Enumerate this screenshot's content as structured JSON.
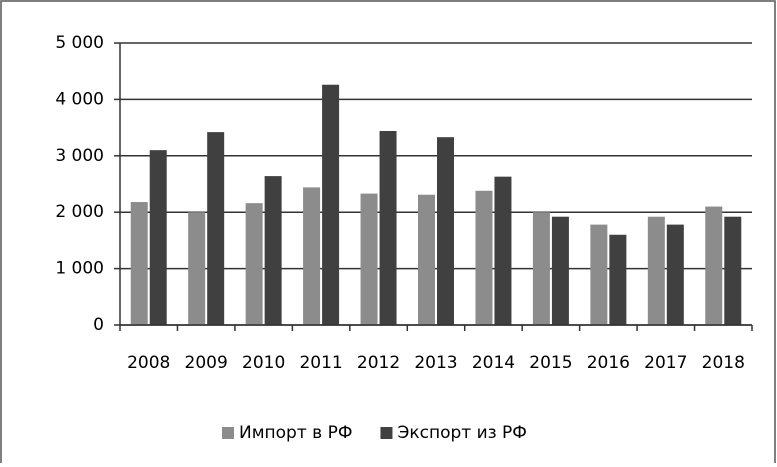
{
  "chart_data": {
    "type": "bar",
    "categories": [
      "2008",
      "2009",
      "2010",
      "2011",
      "2012",
      "2013",
      "2014",
      "2015",
      "2016",
      "2017",
      "2018"
    ],
    "series": [
      {
        "name": "Импорт в РФ",
        "color": "#8c8c8c",
        "values": [
          2180,
          2000,
          2160,
          2440,
          2330,
          2310,
          2380,
          2000,
          1780,
          1920,
          2100
        ]
      },
      {
        "name": "Экспорт из РФ",
        "color": "#404040",
        "values": [
          3100,
          3420,
          2640,
          4260,
          3440,
          3330,
          2630,
          1920,
          1600,
          1780,
          1920
        ]
      }
    ],
    "ylim": [
      0,
      5000
    ],
    "yticks": [
      0,
      {
        "value": 1000,
        "label": "1 000"
      },
      {
        "value": 2000,
        "label": "2 000"
      },
      {
        "value": 3000,
        "label": "3 000"
      },
      {
        "value": 4000,
        "label": "4 000"
      },
      {
        "value": 5000,
        "label": "5 000"
      }
    ],
    "grid": true,
    "legend": "bottom"
  }
}
